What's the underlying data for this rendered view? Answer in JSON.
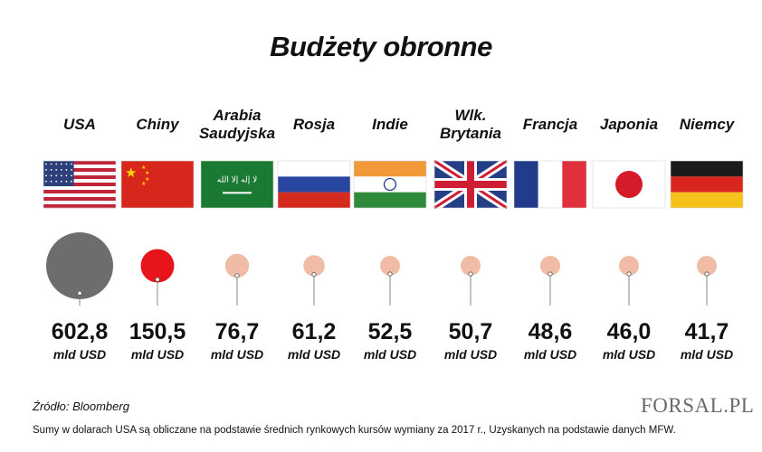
{
  "chart_data": {
    "type": "bubble",
    "title": "Budżety obronne",
    "unit": "mld USD",
    "categories": [
      "USA",
      "Chiny",
      "Arabia\nSaudyjska",
      "Rosja",
      "Indie",
      "Wlk.\nBrytania",
      "Francja",
      "Japonia",
      "Niemcy"
    ],
    "value_labels": [
      "602,8",
      "150,5",
      "76,7",
      "61,2",
      "52,5",
      "50,7",
      "48,6",
      "46,0",
      "41,7"
    ],
    "values": [
      602.8,
      150.5,
      76.7,
      61.2,
      52.5,
      50.7,
      48.6,
      46.0,
      41.7
    ],
    "colors": [
      "#6d6d6d",
      "#e8141b",
      "#f0bca6",
      "#f0bca6",
      "#f0bca6",
      "#f0bca6",
      "#f0bca6",
      "#f0bca6",
      "#f0bca6"
    ],
    "flags": [
      "us-flag",
      "china-flag",
      "saudi-arabia-flag",
      "russia-flag",
      "india-flag",
      "uk-flag",
      "france-flag",
      "japan-flag",
      "germany-flag"
    ]
  },
  "footer": {
    "source": "Źródło:  Bloomberg",
    "note": "Sumy w dolarach USA są obliczane na podstawie średnich rynkowych kursów wymiany za 2017 r., Uzyskanych na podstawie danych MFW.",
    "logo": "FORSAL.PL"
  }
}
